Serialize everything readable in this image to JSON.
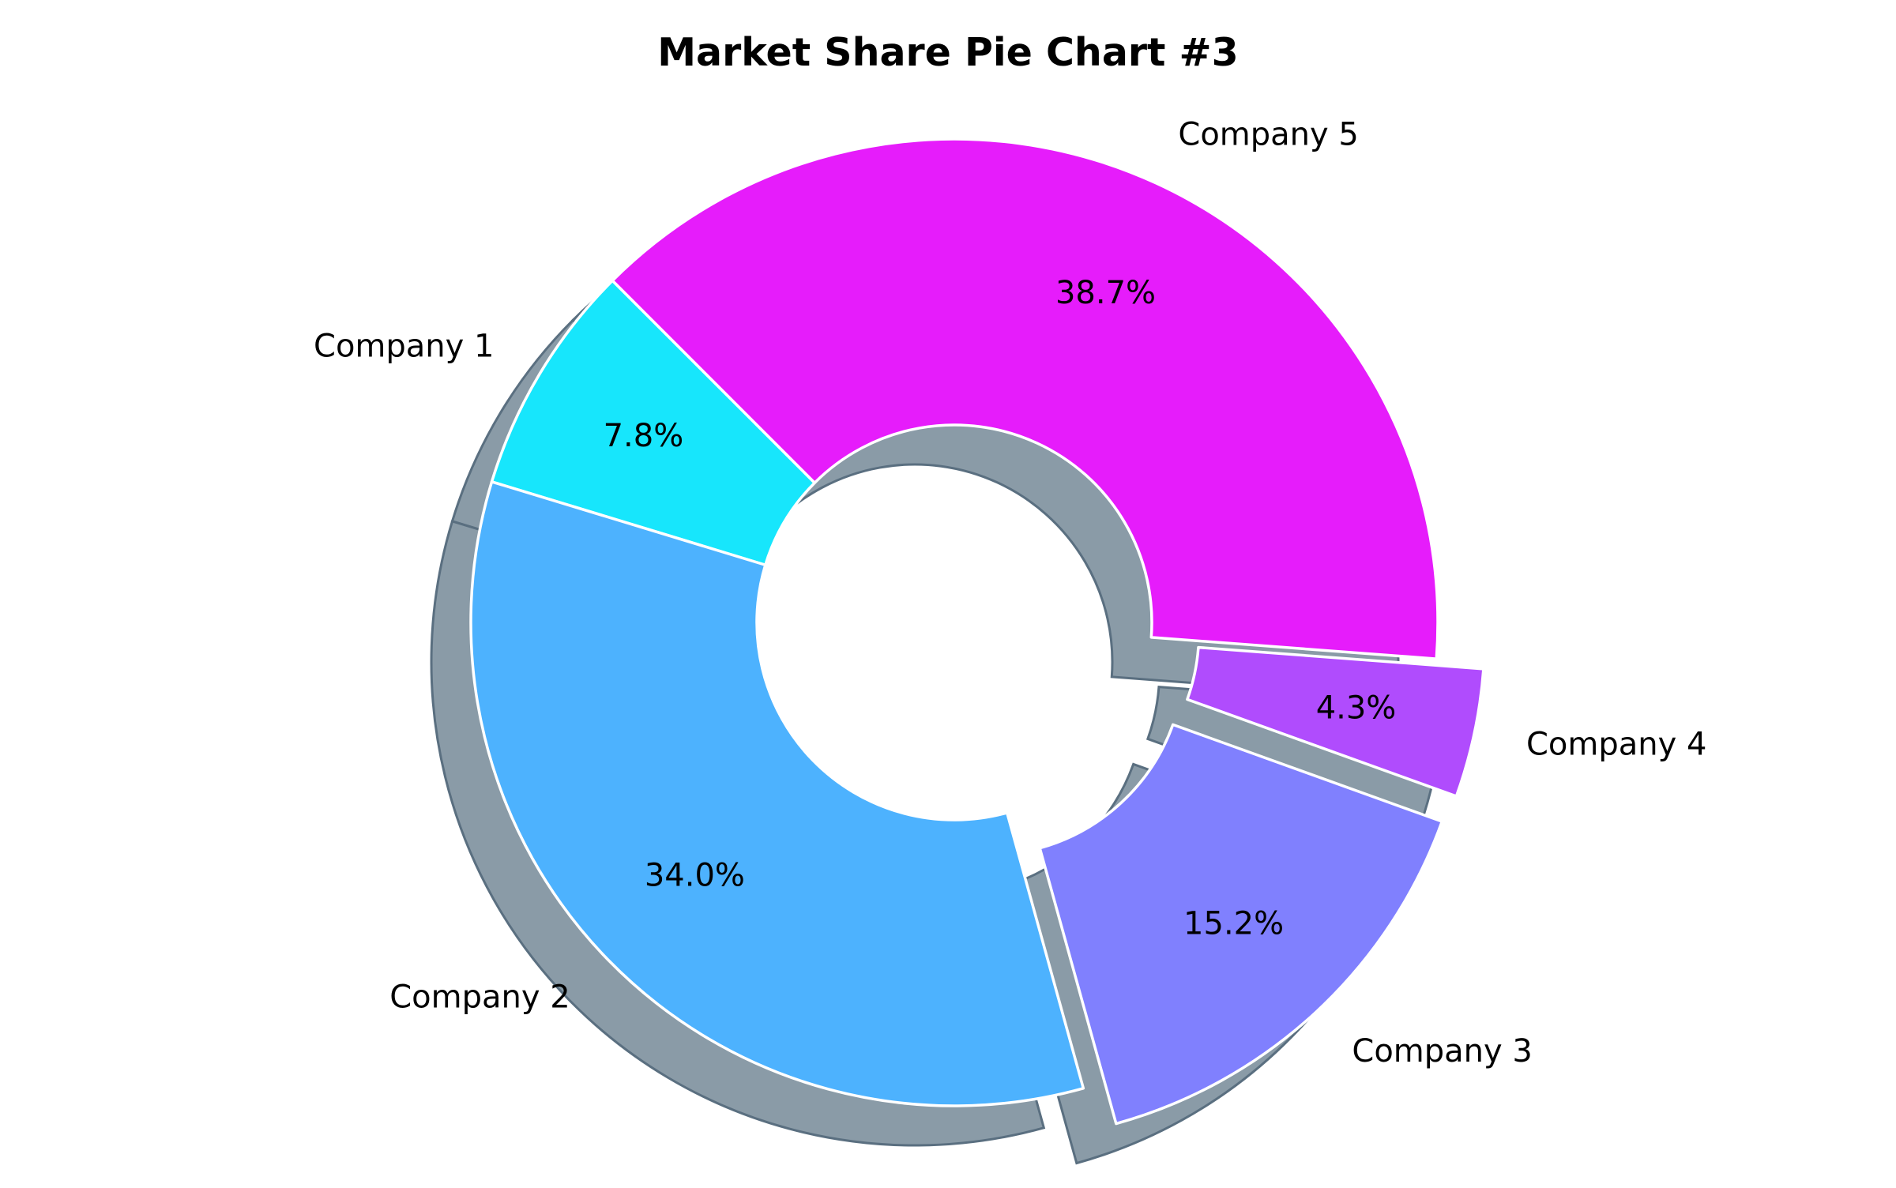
{
  "chart_data": {
    "type": "pie",
    "title": "Market Share Pie Chart #3",
    "style": "donut",
    "shadow": true,
    "categories": [
      "Company 1",
      "Company 2",
      "Company 3",
      "Company 4",
      "Company 5"
    ],
    "values": [
      7.8,
      34.0,
      15.2,
      4.3,
      38.7
    ],
    "value_labels": [
      "7.8%",
      "34.0%",
      "15.2%",
      "4.3%",
      "38.7%"
    ],
    "exploded": [
      false,
      false,
      true,
      true,
      false
    ],
    "colors": [
      "#17e6fc",
      "#4db2fe",
      "#8080fe",
      "#b04cfd",
      "#e61cfb"
    ],
    "edge_color": "#ffffff",
    "shadow_color": "#8a9ba7",
    "legend": "none"
  }
}
